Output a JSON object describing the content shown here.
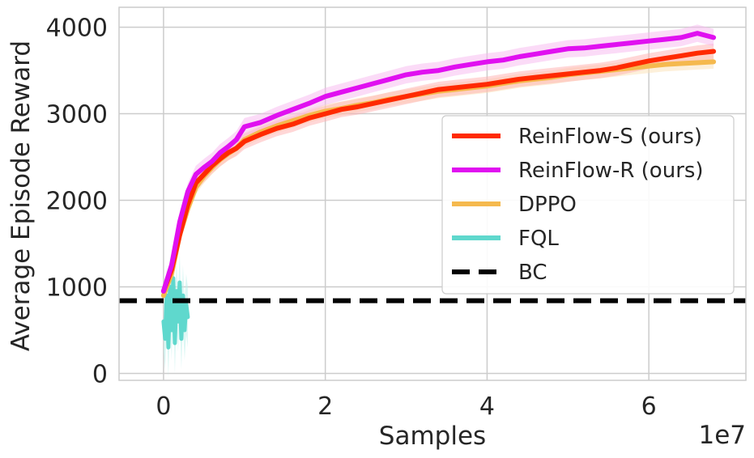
{
  "chart_data": {
    "type": "line",
    "xlabel": "Samples",
    "ylabel": "Average Episode Reward",
    "x_multiplier": "1e7",
    "xlim": [
      -0.55,
      7.2
    ],
    "ylim": [
      -80,
      4230
    ],
    "x_ticks": [
      0,
      2,
      4,
      6
    ],
    "y_ticks": [
      0,
      1000,
      2000,
      3000,
      4000
    ],
    "x_tick_labels": [
      "0",
      "2",
      "4",
      "6"
    ],
    "y_tick_labels": [
      "0",
      "1000",
      "2000",
      "3000",
      "4000"
    ],
    "grid": true,
    "legend_position": "center-right",
    "series": [
      {
        "name": "ReinFlow-S (ours)",
        "color": "#ff2a00",
        "band_color": "#ffb0b0",
        "x": [
          0,
          0.1,
          0.2,
          0.3,
          0.4,
          0.5,
          0.6,
          0.7,
          0.8,
          0.9,
          1.0,
          1.2,
          1.4,
          1.6,
          1.8,
          2.0,
          2.2,
          2.4,
          2.6,
          2.8,
          3.0,
          3.2,
          3.4,
          3.6,
          3.8,
          4.0,
          4.2,
          4.4,
          4.6,
          4.8,
          5.0,
          5.2,
          5.4,
          5.6,
          5.8,
          6.0,
          6.2,
          6.4,
          6.6,
          6.8
        ],
        "y": [
          950,
          1200,
          1600,
          1950,
          2200,
          2300,
          2400,
          2480,
          2550,
          2600,
          2680,
          2760,
          2830,
          2880,
          2950,
          3000,
          3050,
          3080,
          3120,
          3160,
          3200,
          3240,
          3280,
          3300,
          3320,
          3340,
          3370,
          3400,
          3420,
          3440,
          3460,
          3480,
          3500,
          3530,
          3570,
          3610,
          3640,
          3670,
          3700,
          3720
        ],
        "band": 90
      },
      {
        "name": "ReinFlow-R (ours)",
        "color": "#e010f0",
        "band_color": "#f8b8f0",
        "x": [
          0,
          0.1,
          0.2,
          0.3,
          0.4,
          0.5,
          0.6,
          0.7,
          0.8,
          0.9,
          1.0,
          1.2,
          1.4,
          1.6,
          1.8,
          2.0,
          2.2,
          2.4,
          2.6,
          2.8,
          3.0,
          3.2,
          3.4,
          3.6,
          3.8,
          4.0,
          4.2,
          4.4,
          4.6,
          4.8,
          5.0,
          5.2,
          5.4,
          5.6,
          5.8,
          6.0,
          6.2,
          6.4,
          6.6,
          6.8
        ],
        "y": [
          950,
          1250,
          1750,
          2100,
          2300,
          2380,
          2450,
          2550,
          2620,
          2700,
          2850,
          2900,
          2980,
          3050,
          3120,
          3200,
          3250,
          3300,
          3350,
          3400,
          3450,
          3480,
          3500,
          3540,
          3570,
          3600,
          3620,
          3660,
          3690,
          3720,
          3750,
          3760,
          3780,
          3800,
          3820,
          3840,
          3860,
          3880,
          3930,
          3880
        ],
        "band": 100
      },
      {
        "name": "DPPO",
        "color": "#f5b94e",
        "band_color": "#fbe2b6",
        "x": [
          0,
          0.1,
          0.2,
          0.3,
          0.4,
          0.5,
          0.6,
          0.7,
          0.8,
          0.9,
          1.0,
          1.2,
          1.4,
          1.6,
          1.8,
          2.0,
          2.2,
          2.4,
          2.6,
          2.8,
          3.0,
          3.2,
          3.4,
          3.6,
          3.8,
          4.0,
          4.2,
          4.4,
          4.6,
          4.8,
          5.0,
          5.2,
          5.4,
          5.6,
          5.8,
          6.0,
          6.2,
          6.4,
          6.6,
          6.8
        ],
        "y": [
          900,
          1150,
          1600,
          1900,
          2150,
          2280,
          2380,
          2470,
          2540,
          2600,
          2700,
          2790,
          2860,
          2920,
          2980,
          3030,
          3060,
          3100,
          3130,
          3170,
          3200,
          3230,
          3260,
          3280,
          3300,
          3320,
          3350,
          3380,
          3400,
          3420,
          3450,
          3470,
          3490,
          3510,
          3530,
          3550,
          3570,
          3580,
          3590,
          3600
        ],
        "band": 80
      },
      {
        "name": "FQL",
        "color": "#5fd8cd",
        "band_color": "#b9efe9",
        "x": [
          0,
          0.02,
          0.04,
          0.06,
          0.08,
          0.1,
          0.12,
          0.14,
          0.16,
          0.18,
          0.2,
          0.22,
          0.24,
          0.26,
          0.28,
          0.3
        ],
        "y": [
          600,
          400,
          900,
          300,
          1000,
          500,
          1100,
          350,
          950,
          600,
          1050,
          400,
          900,
          500,
          800,
          650
        ],
        "band": 350
      },
      {
        "name": "BC",
        "color": "#000000",
        "style": "dashed",
        "constant": 840
      }
    ]
  }
}
